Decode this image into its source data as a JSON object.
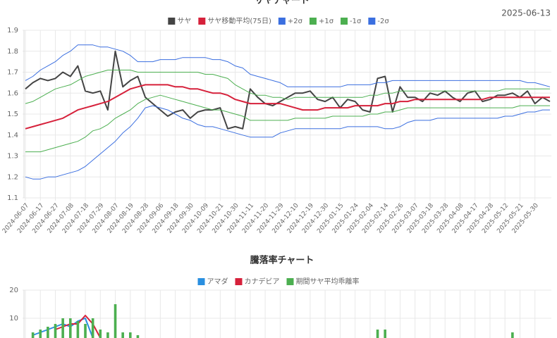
{
  "chart_data": [
    {
      "type": "line",
      "title": "サヤチャート",
      "date": "2025-06-13",
      "categories": [
        "2024-06-07",
        null,
        "2024-06-17",
        null,
        "2024-06-27",
        null,
        "2024-07-08",
        null,
        "2024-07-18",
        null,
        "2024-07-29",
        null,
        "2024-08-07",
        null,
        "2024-08-19",
        null,
        "2024-08-28",
        null,
        "2024-09-06",
        null,
        "2024-09-18",
        null,
        "2024-09-30",
        null,
        "2024-10-09",
        null,
        "2024-10-21",
        null,
        "2024-10-30",
        null,
        "2024-11-11",
        null,
        "2024-11-20",
        null,
        "2024-11-29",
        null,
        "2024-12-10",
        null,
        "2024-12-19",
        null,
        "2024-12-30",
        null,
        "2025-01-15",
        null,
        "2025-01-24",
        null,
        "2025-02-04",
        null,
        "2025-02-14",
        null,
        "2025-02-26",
        null,
        "2025-03-07",
        null,
        "2025-03-18",
        null,
        "2025-03-28",
        null,
        "2025-04-08",
        null,
        "2025-04-17",
        null,
        "2025-04-28",
        null,
        "2025-05-12",
        null,
        "2025-05-21",
        null,
        "2025-05-30",
        null,
        null
      ],
      "ylim": [
        1.1,
        1.9
      ],
      "yticks": [
        1.1,
        1.2,
        1.3,
        1.4,
        1.5,
        1.6,
        1.7,
        1.8,
        1.9
      ],
      "grid": true,
      "series": [
        {
          "name": "サヤ",
          "color": "#444444",
          "width": 2,
          "values": [
            1.62,
            1.65,
            1.67,
            1.66,
            1.67,
            1.7,
            1.68,
            1.73,
            1.61,
            1.6,
            1.61,
            1.52,
            1.8,
            1.63,
            1.66,
            1.68,
            1.58,
            1.55,
            1.52,
            1.49,
            1.51,
            1.52,
            1.48,
            1.51,
            1.52,
            1.52,
            1.53,
            1.43,
            1.44,
            1.43,
            1.62,
            1.58,
            1.55,
            1.54,
            1.56,
            1.58,
            1.6,
            1.6,
            1.61,
            1.57,
            1.56,
            1.58,
            1.53,
            1.57,
            1.56,
            1.52,
            1.51,
            1.67,
            1.68,
            1.51,
            1.63,
            1.58,
            1.58,
            1.56,
            1.6,
            1.59,
            1.61,
            1.58,
            1.56,
            1.6,
            1.61,
            1.56,
            1.57,
            1.59,
            1.59,
            1.6,
            1.58,
            1.61,
            1.55,
            1.58,
            1.56
          ]
        },
        {
          "name": "サヤ移動平均(75日)",
          "color": "#d6213b",
          "width": 2,
          "values": [
            1.43,
            1.44,
            1.45,
            1.46,
            1.47,
            1.48,
            1.5,
            1.52,
            1.53,
            1.54,
            1.55,
            1.56,
            1.58,
            1.6,
            1.62,
            1.63,
            1.64,
            1.64,
            1.64,
            1.64,
            1.63,
            1.63,
            1.62,
            1.62,
            1.61,
            1.6,
            1.6,
            1.59,
            1.57,
            1.56,
            1.55,
            1.55,
            1.55,
            1.55,
            1.55,
            1.54,
            1.53,
            1.52,
            1.52,
            1.52,
            1.53,
            1.53,
            1.53,
            1.53,
            1.54,
            1.54,
            1.54,
            1.54,
            1.55,
            1.55,
            1.56,
            1.56,
            1.57,
            1.57,
            1.57,
            1.57,
            1.57,
            1.57,
            1.57,
            1.57,
            1.57,
            1.57,
            1.58,
            1.58,
            1.58,
            1.58,
            1.58,
            1.58,
            1.58,
            1.58,
            1.58
          ]
        },
        {
          "name": "+2σ",
          "color": "#3b6fe0",
          "width": 1,
          "values": [
            1.66,
            1.68,
            1.71,
            1.73,
            1.75,
            1.78,
            1.8,
            1.83,
            1.83,
            1.83,
            1.82,
            1.82,
            1.81,
            1.8,
            1.78,
            1.75,
            1.75,
            1.75,
            1.76,
            1.76,
            1.76,
            1.77,
            1.77,
            1.77,
            1.77,
            1.76,
            1.76,
            1.75,
            1.73,
            1.72,
            1.69,
            1.68,
            1.67,
            1.66,
            1.65,
            1.63,
            1.63,
            1.63,
            1.63,
            1.63,
            1.63,
            1.63,
            1.63,
            1.64,
            1.64,
            1.64,
            1.64,
            1.65,
            1.65,
            1.66,
            1.66,
            1.66,
            1.66,
            1.66,
            1.66,
            1.66,
            1.66,
            1.66,
            1.66,
            1.66,
            1.66,
            1.66,
            1.66,
            1.66,
            1.66,
            1.66,
            1.66,
            1.65,
            1.65,
            1.64,
            1.63
          ]
        },
        {
          "name": "+1σ",
          "color": "#4caf50",
          "width": 1,
          "values": [
            1.55,
            1.56,
            1.58,
            1.6,
            1.62,
            1.63,
            1.64,
            1.66,
            1.68,
            1.69,
            1.7,
            1.71,
            1.71,
            1.71,
            1.71,
            1.7,
            1.7,
            1.7,
            1.7,
            1.7,
            1.7,
            1.7,
            1.7,
            1.7,
            1.69,
            1.69,
            1.68,
            1.67,
            1.64,
            1.62,
            1.6,
            1.59,
            1.59,
            1.58,
            1.58,
            1.57,
            1.58,
            1.58,
            1.58,
            1.58,
            1.58,
            1.58,
            1.58,
            1.58,
            1.58,
            1.58,
            1.59,
            1.59,
            1.6,
            1.6,
            1.61,
            1.61,
            1.61,
            1.61,
            1.61,
            1.61,
            1.61,
            1.61,
            1.61,
            1.61,
            1.61,
            1.61,
            1.61,
            1.61,
            1.62,
            1.62,
            1.62,
            1.62,
            1.62,
            1.62,
            1.62
          ]
        },
        {
          "name": "-1σ",
          "color": "#4caf50",
          "width": 1,
          "values": [
            1.32,
            1.32,
            1.32,
            1.33,
            1.34,
            1.35,
            1.36,
            1.37,
            1.39,
            1.42,
            1.43,
            1.45,
            1.48,
            1.5,
            1.52,
            1.55,
            1.57,
            1.58,
            1.59,
            1.58,
            1.57,
            1.56,
            1.55,
            1.54,
            1.53,
            1.52,
            1.52,
            1.51,
            1.5,
            1.49,
            1.47,
            1.47,
            1.47,
            1.47,
            1.47,
            1.47,
            1.48,
            1.48,
            1.48,
            1.48,
            1.48,
            1.49,
            1.49,
            1.49,
            1.49,
            1.49,
            1.5,
            1.5,
            1.51,
            1.51,
            1.52,
            1.53,
            1.53,
            1.53,
            1.53,
            1.53,
            1.53,
            1.53,
            1.53,
            1.53,
            1.53,
            1.53,
            1.53,
            1.53,
            1.53,
            1.53,
            1.54,
            1.54,
            1.54,
            1.54,
            1.54
          ]
        },
        {
          "name": "-2σ",
          "color": "#3b6fe0",
          "width": 1,
          "values": [
            1.2,
            1.19,
            1.19,
            1.2,
            1.2,
            1.21,
            1.22,
            1.23,
            1.25,
            1.28,
            1.31,
            1.34,
            1.37,
            1.41,
            1.44,
            1.48,
            1.53,
            1.54,
            1.53,
            1.52,
            1.5,
            1.48,
            1.47,
            1.45,
            1.44,
            1.44,
            1.43,
            1.42,
            1.41,
            1.4,
            1.39,
            1.39,
            1.39,
            1.39,
            1.41,
            1.42,
            1.43,
            1.43,
            1.43,
            1.43,
            1.43,
            1.43,
            1.43,
            1.44,
            1.44,
            1.44,
            1.44,
            1.44,
            1.43,
            1.43,
            1.44,
            1.46,
            1.47,
            1.47,
            1.47,
            1.48,
            1.48,
            1.48,
            1.48,
            1.48,
            1.48,
            1.48,
            1.48,
            1.48,
            1.49,
            1.49,
            1.5,
            1.51,
            1.51,
            1.52,
            1.52
          ]
        }
      ]
    },
    {
      "type": "bar",
      "title": "騰落率チャート",
      "ylim": [
        0,
        20
      ],
      "yticks": [
        10,
        20
      ],
      "grid": true,
      "series": [
        {
          "name": "アマダ",
          "type": "line",
          "color": "#2a8fe0",
          "width": 2,
          "values": [
            null,
            4,
            5,
            6,
            7,
            8,
            7,
            9,
            10,
            3,
            null,
            null,
            null,
            null,
            null,
            null,
            null,
            null,
            null,
            null,
            null,
            null,
            null,
            null,
            null,
            null,
            null,
            null,
            null,
            null,
            null,
            null,
            null,
            null,
            null,
            null,
            null,
            null,
            null,
            null,
            null,
            null,
            null,
            null,
            null,
            null,
            null,
            null,
            null,
            null,
            null,
            null,
            null,
            null,
            null,
            null,
            null,
            null,
            null,
            null,
            null,
            null,
            null,
            null,
            null,
            null,
            null,
            null,
            null,
            null,
            null
          ]
        },
        {
          "name": "カナデビア",
          "type": "line",
          "color": "#d6213b",
          "width": 2,
          "values": [
            null,
            null,
            null,
            null,
            6,
            7,
            8,
            8,
            11,
            8,
            3,
            null,
            null,
            null,
            null,
            null,
            null,
            null,
            null,
            null,
            null,
            null,
            null,
            null,
            null,
            null,
            null,
            null,
            null,
            null,
            null,
            null,
            null,
            null,
            null,
            null,
            null,
            null,
            null,
            null,
            null,
            null,
            null,
            null,
            null,
            null,
            null,
            null,
            null,
            null,
            null,
            null,
            null,
            null,
            null,
            null,
            null,
            null,
            null,
            null,
            null,
            null,
            null,
            null,
            null,
            null,
            null,
            null,
            null,
            null,
            null
          ]
        },
        {
          "name": "期間サヤ平均乖離率",
          "type": "bar",
          "color": "#4caf50",
          "values": [
            null,
            5,
            6,
            7,
            8,
            10,
            10,
            9,
            8,
            10,
            6,
            5,
            15,
            5,
            5,
            4,
            null,
            null,
            null,
            null,
            null,
            null,
            null,
            null,
            null,
            null,
            null,
            null,
            null,
            null,
            null,
            null,
            null,
            null,
            null,
            null,
            null,
            null,
            null,
            null,
            null,
            null,
            null,
            null,
            null,
            null,
            null,
            6,
            6,
            null,
            null,
            null,
            null,
            null,
            null,
            null,
            null,
            null,
            null,
            null,
            null,
            null,
            null,
            null,
            null,
            5,
            null,
            null,
            null,
            null,
            null
          ]
        }
      ]
    }
  ]
}
